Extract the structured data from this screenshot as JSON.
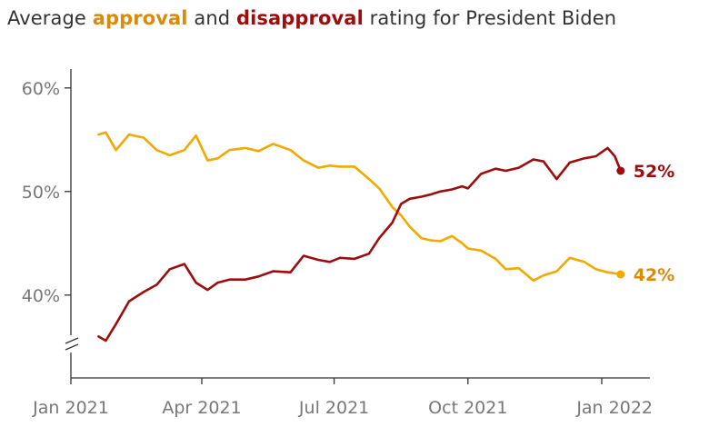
{
  "subtitle": {
    "prefix": "Average ",
    "approval_word": "approval",
    "middle": " and ",
    "disapproval_word": "disapproval",
    "suffix": " rating for President Biden"
  },
  "chart_data": {
    "type": "line",
    "title": "",
    "subtitle": "Average approval and disapproval rating for President Biden",
    "xlabel": "",
    "ylabel": "",
    "ylim": [
      32,
      60
    ],
    "yticks": [
      40,
      50,
      60
    ],
    "ytick_labels": [
      "40%",
      "50%",
      "60%"
    ],
    "axis_break": true,
    "grid": false,
    "legend": "none (series named in subtitle; end-of-line labels)",
    "xticks": [
      "2021-01-01",
      "2021-04-01",
      "2021-07-01",
      "2021-10-01",
      "2022-01-01"
    ],
    "xtick_labels": [
      "Jan 2021",
      "Apr 2021",
      "Jul 2021",
      "Oct 2021",
      "Jan 2022"
    ],
    "x": [
      "2021-01-20",
      "2021-01-25",
      "2021-02-01",
      "2021-02-10",
      "2021-02-20",
      "2021-03-01",
      "2021-03-10",
      "2021-03-20",
      "2021-03-28",
      "2021-04-05",
      "2021-04-12",
      "2021-04-20",
      "2021-05-01",
      "2021-05-10",
      "2021-05-20",
      "2021-06-01",
      "2021-06-10",
      "2021-06-20",
      "2021-06-28",
      "2021-07-05",
      "2021-07-15",
      "2021-07-25",
      "2021-08-01",
      "2021-08-10",
      "2021-08-16",
      "2021-08-22",
      "2021-08-30",
      "2021-09-05",
      "2021-09-12",
      "2021-09-20",
      "2021-09-27",
      "2021-10-01",
      "2021-10-10",
      "2021-10-20",
      "2021-10-27",
      "2021-11-05",
      "2021-11-15",
      "2021-11-22",
      "2021-12-01",
      "2021-12-10",
      "2021-12-20",
      "2021-12-28",
      "2022-01-05",
      "2022-01-10",
      "2022-01-14"
    ],
    "series": [
      {
        "name": "approval",
        "color": "#F2A900",
        "end_label": "42%",
        "values": [
          55.5,
          55.7,
          54.0,
          55.5,
          55.2,
          54.0,
          53.5,
          54.0,
          55.4,
          53.0,
          53.2,
          54.0,
          54.2,
          53.9,
          54.6,
          54.0,
          53.0,
          52.3,
          52.5,
          52.4,
          52.4,
          51.2,
          50.3,
          48.5,
          47.7,
          46.6,
          45.5,
          45.3,
          45.2,
          45.7,
          45.0,
          44.5,
          44.3,
          43.5,
          42.5,
          42.6,
          41.4,
          41.9,
          42.3,
          43.6,
          43.2,
          42.5,
          42.2,
          42.1,
          42.0
        ]
      },
      {
        "name": "disapproval",
        "color": "#9D0D0D",
        "end_label": "52%",
        "values": [
          36.0,
          35.6,
          37.2,
          39.4,
          40.3,
          41.0,
          42.5,
          43.0,
          41.2,
          40.5,
          41.2,
          41.5,
          41.5,
          41.8,
          42.3,
          42.2,
          43.8,
          43.4,
          43.2,
          43.6,
          43.5,
          44.0,
          45.5,
          47.0,
          48.8,
          49.3,
          49.5,
          49.7,
          50.0,
          50.2,
          50.5,
          50.3,
          51.7,
          52.2,
          52.0,
          52.3,
          53.1,
          52.9,
          51.2,
          52.8,
          53.2,
          53.4,
          54.2,
          53.4,
          52.0
        ]
      }
    ]
  }
}
